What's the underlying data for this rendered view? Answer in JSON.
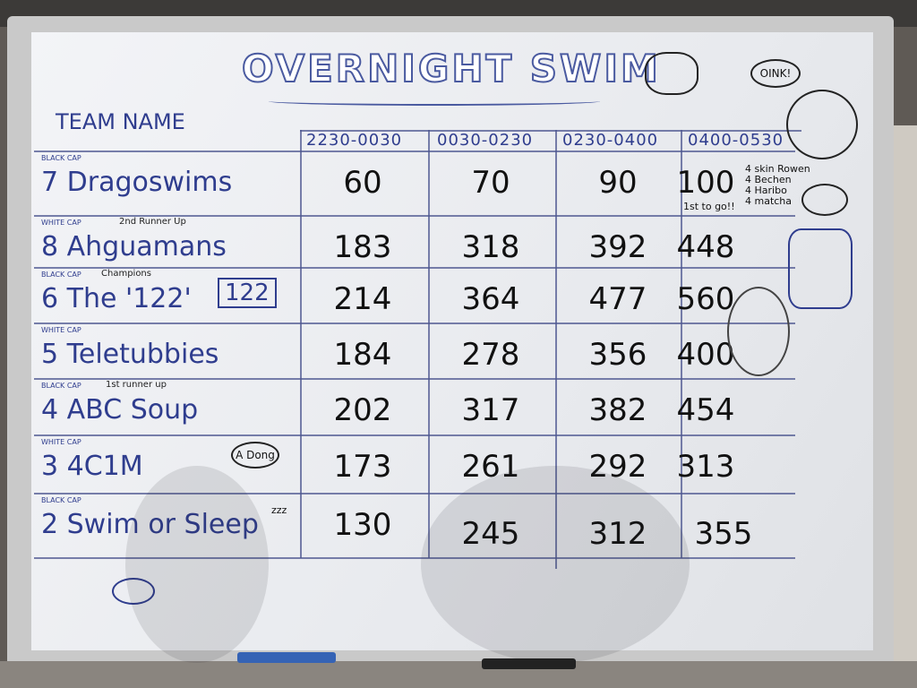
{
  "title": "OVERNIGHT SWIM",
  "team_header": "TEAM NAME",
  "time_slots": [
    "2230-0030",
    "0030-0230",
    "0230-0400",
    "0400-0530"
  ],
  "teams": [
    {
      "cap": "BLACK CAP",
      "number": "7",
      "name": "Dragoswims",
      "award": "",
      "scores": [
        "60",
        "70",
        "90",
        "100"
      ]
    },
    {
      "cap": "WHITE CAP",
      "number": "8",
      "name": "Ahguamans",
      "award": "2nd Runner Up",
      "scores": [
        "183",
        "318",
        "392",
        "448"
      ]
    },
    {
      "cap": "BLACK CAP",
      "number": "6",
      "name": "The '122'",
      "award": "Champions",
      "scores": [
        "214",
        "364",
        "477",
        "560"
      ]
    },
    {
      "cap": "WHITE CAP",
      "number": "5",
      "name": "Teletubbies",
      "award": "",
      "scores": [
        "184",
        "278",
        "356",
        "400"
      ]
    },
    {
      "cap": "BLACK CAP",
      "number": "4",
      "name": "ABC Soup",
      "award": "1st runner up",
      "scores": [
        "202",
        "317",
        "382",
        "454"
      ]
    },
    {
      "cap": "WHITE CAP",
      "number": "3",
      "name": "4C1M",
      "award": "",
      "scores": [
        "173",
        "261",
        "292",
        "313"
      ]
    },
    {
      "cap": "BLACK CAP",
      "number": "2",
      "name": "Swim or Sleep",
      "award": "",
      "scores": [
        "130",
        "245",
        "312",
        "355"
      ]
    }
  ],
  "notes": {
    "first_to_go": "1st to go!!",
    "prizes": [
      "4 skin Rowen",
      "4 Bechen",
      "4 Haribo",
      "4 matcha"
    ],
    "oink": "OINK!",
    "a_dong": "A Dong",
    "zzz": "zzz",
    "doodle_122": "122"
  },
  "colors": {
    "marker_blue": "#2f3d8e",
    "marker_black": "#111111",
    "board": "#eef0f3"
  }
}
